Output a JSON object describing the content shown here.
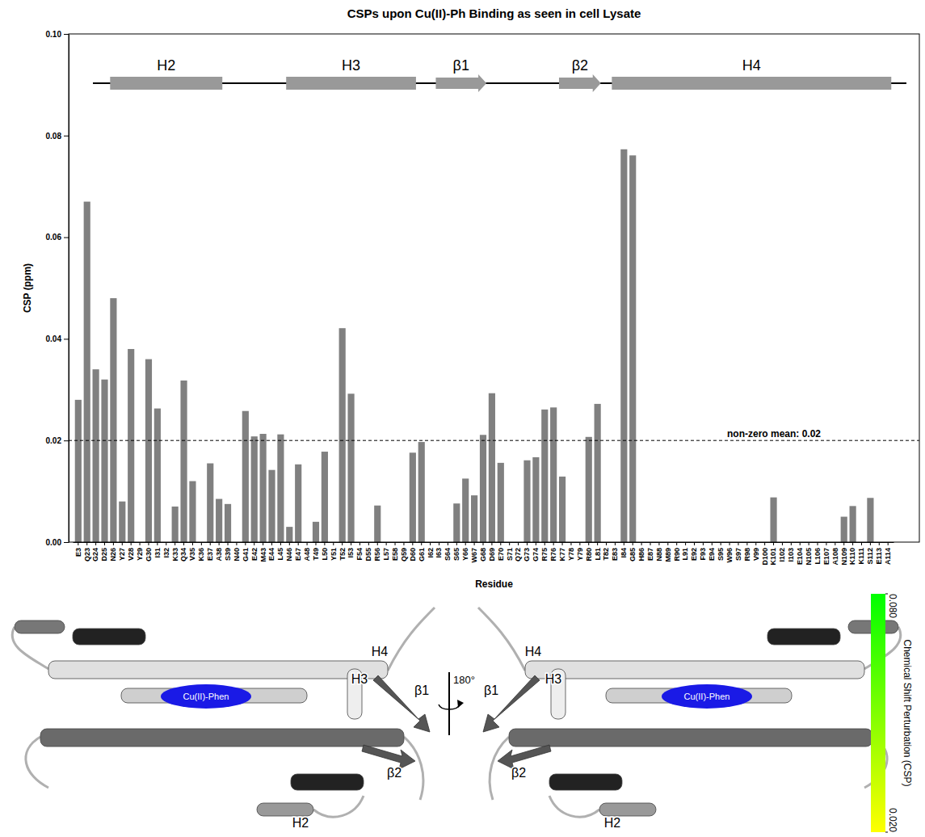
{
  "chart_data": {
    "type": "bar",
    "title": "CSPs upon Cu(II)-Ph Binding as seen in cell Lysate",
    "x_label": "Residue",
    "y_label": "CSP (ppm)",
    "color": "#808080",
    "categories": [
      "E3",
      "Q23",
      "G24",
      "D25",
      "N26",
      "Y27",
      "V28",
      "Y29",
      "G30",
      "I31",
      "I32",
      "K33",
      "Q34",
      "V35",
      "K36",
      "E37",
      "A38",
      "S39",
      "N40",
      "G41",
      "E42",
      "M43",
      "E44",
      "L45",
      "N46",
      "E47",
      "A48",
      "T49",
      "L50",
      "Y51",
      "T52",
      "I53",
      "F54",
      "D55",
      "R56",
      "L57",
      "E58",
      "Q59",
      "D60",
      "G61",
      "I62",
      "I63",
      "S64",
      "S65",
      "Y66",
      "W67",
      "G68",
      "D69",
      "E70",
      "S71",
      "Q72",
      "G73",
      "G74",
      "R75",
      "R76",
      "K77",
      "Y78",
      "Y79",
      "R80",
      "L81",
      "T82",
      "E83",
      "I84",
      "G85",
      "H86",
      "E87",
      "N88",
      "M89",
      "R90",
      "L91",
      "E92",
      "F93",
      "E94",
      "S95",
      "W96",
      "S97",
      "R98",
      "V99",
      "D100",
      "K101",
      "I102",
      "I103",
      "E104",
      "N105",
      "L106",
      "E107",
      "A108",
      "N109",
      "K110",
      "K111",
      "S112",
      "E113",
      "A114"
    ],
    "values": [
      0.028,
      0.067,
      0.034,
      0.032,
      0.048,
      0.008,
      0.038,
      0,
      0.036,
      0.0263,
      0,
      0.007,
      0.0318,
      0.012,
      0,
      0.0155,
      0.0085,
      0.0075,
      0,
      0.0258,
      0.0208,
      0.0213,
      0.0142,
      0.0212,
      0.003,
      0.0153,
      0,
      0.004,
      0.0178,
      0,
      0.0421,
      0.0292,
      0,
      0,
      0.0072,
      0,
      0,
      0,
      0.0176,
      0.0197,
      0,
      0,
      0,
      0.0076,
      0.0125,
      0.0092,
      0.0211,
      0.0293,
      0.0156,
      0,
      0,
      0.0161,
      0.0167,
      0.0261,
      0.0265,
      0.0129,
      0,
      0,
      0.0207,
      0.0272,
      0,
      0,
      0.0773,
      0.0761,
      0,
      0,
      0,
      0,
      0,
      0,
      0,
      0,
      0,
      0,
      0,
      0,
      0,
      0,
      0,
      0.0088,
      0,
      0,
      0,
      0,
      0,
      0,
      0,
      0.005,
      0.0071,
      0,
      0.0087,
      0,
      0
    ],
    "ylim": [
      0,
      0.1
    ],
    "yticks": [
      {
        "value": 0,
        "label": "0.00"
      },
      {
        "value": 0.02,
        "label": "0.02"
      },
      {
        "value": 0.04,
        "label": "0.04"
      },
      {
        "value": 0.06,
        "label": "0.06"
      },
      {
        "value": 0.08,
        "label": "0.08"
      },
      {
        "value": 0.1,
        "label": "0.10"
      }
    ],
    "grid": false,
    "annotations": [
      {
        "value": 0.02,
        "label": "non-zero mean: 0.02",
        "line_style": "dashed"
      }
    ],
    "secondary_structure": [
      {
        "label": "H2",
        "type": "helix",
        "start": "N26",
        "end": "A38"
      },
      {
        "label": "H3",
        "type": "helix",
        "start": "N46",
        "end": "D60"
      },
      {
        "label": "β1",
        "type": "strand",
        "start": "I63",
        "end": "G68"
      },
      {
        "label": "β2",
        "type": "strand",
        "start": "K77",
        "end": "L81"
      },
      {
        "label": "H4",
        "type": "helix",
        "start": "E83",
        "end": "A114"
      }
    ]
  },
  "structure_panel": {
    "views": [
      {
        "labels": [
          "H4",
          "H3",
          "β1",
          "β2",
          "H2"
        ],
        "ligand": "Cu(II)-Phen"
      },
      {
        "labels": [
          "H4",
          "H3",
          "β1",
          "β2",
          "H2"
        ],
        "ligand": "Cu(II)-Phen"
      }
    ],
    "rotation": "180°",
    "colorbar": {
      "title": "Chemical Shift Perturbation (CSP)",
      "range": [
        0.02,
        0.08
      ],
      "ticks": [
        {
          "value": 0.08,
          "label": "0.080"
        },
        {
          "value": 0.02,
          "label": "0.020"
        }
      ],
      "colors": [
        "#ffff00",
        "#00ff00"
      ]
    }
  }
}
